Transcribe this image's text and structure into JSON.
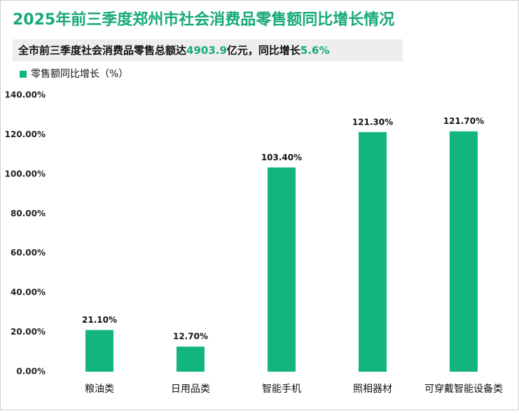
{
  "chart_data": {
    "type": "bar",
    "title": "2025年前三季度郑州市社会消费品零售额同比增长情况",
    "subtitle": [
      "全市前三季度社会消费品零售总额达",
      "4903.9",
      "亿元，同比增长",
      "5.6%"
    ],
    "categories": [
      "粮油类",
      "日用品类",
      "智能手机",
      "照相器材",
      "可穿戴智能设备类"
    ],
    "series": [
      {
        "name": "零售额同比增长（%）",
        "color": "#12b47f",
        "values": [
          21.1,
          12.7,
          103.4,
          121.3,
          121.7
        ],
        "value_labels": [
          "21.10%",
          "12.70%",
          "103.40%",
          "121.30%",
          "121.70%"
        ]
      }
    ],
    "ylim": [
      0,
      140
    ],
    "yticks": [
      {
        "value": 0,
        "label": "0.00%"
      },
      {
        "value": 20,
        "label": "20.00%"
      },
      {
        "value": 40,
        "label": "40.00%"
      },
      {
        "value": 60,
        "label": "60.00%"
      },
      {
        "value": 80,
        "label": "80.00%"
      },
      {
        "value": 100,
        "label": "100.00%"
      },
      {
        "value": 120,
        "label": "120.00%"
      },
      {
        "value": 140,
        "label": "140.00%"
      }
    ],
    "grid": false
  }
}
